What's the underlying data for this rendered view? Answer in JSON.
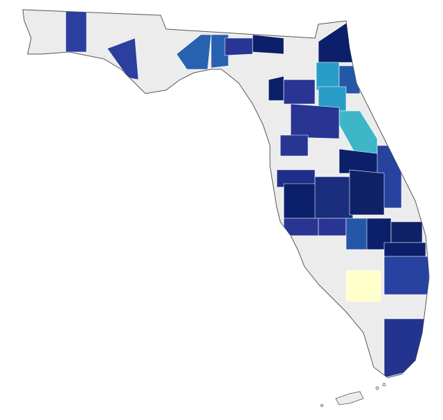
{
  "map": {
    "regions": [
      {
        "color": "#2a3f9e"
      },
      {
        "color": "#2a3f9e"
      },
      {
        "color": "#2861b0"
      },
      {
        "color": "#2861b0"
      },
      {
        "color": "#283593"
      },
      {
        "color": "#0c1f6b"
      },
      {
        "color": "#0c1f6b"
      },
      {
        "color": "#2a9cc8"
      },
      {
        "color": "#2457a8"
      },
      {
        "color": "#2a9cc8"
      },
      {
        "color": "#3fb5c8"
      },
      {
        "color": "#0c1f6b"
      },
      {
        "color": "#283593"
      },
      {
        "color": "#283593"
      },
      {
        "color": "#283593"
      },
      {
        "color": "#0c1f6b"
      },
      {
        "color": "#2842a0"
      },
      {
        "color": "#1e2f8a"
      },
      {
        "color": "#0c1f6b"
      },
      {
        "color": "#1b2d7d"
      },
      {
        "color": "#0f2268"
      },
      {
        "color": "#283593"
      },
      {
        "color": "#283593"
      },
      {
        "color": "#2457a8"
      },
      {
        "color": "#0c1f6b"
      },
      {
        "color": "#0f2268"
      },
      {
        "color": "#0c1f6b"
      },
      {
        "color": "#2842a0"
      },
      {
        "color": "#ffffcc"
      },
      {
        "color": "#23348e"
      }
    ]
  }
}
